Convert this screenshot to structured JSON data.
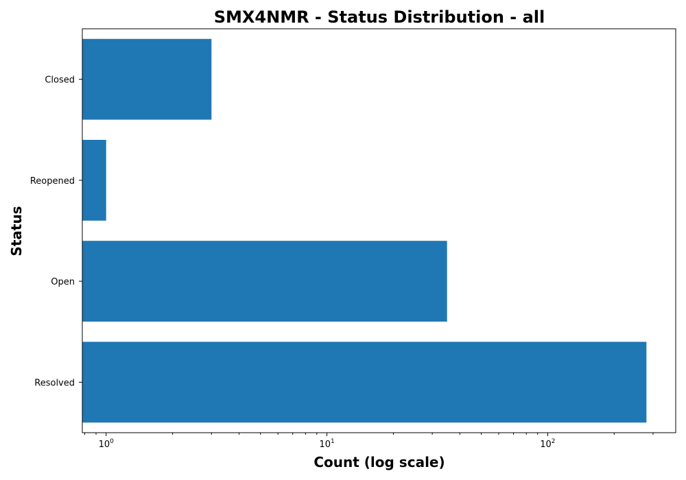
{
  "chart_data": {
    "type": "bar",
    "orientation": "horizontal",
    "title": "SMX4NMR - Status Distribution - all",
    "xlabel": "Count (log scale)",
    "ylabel": "Status",
    "x_scale": "log",
    "xlim": [
      0.78,
      380
    ],
    "x_ticks": [
      {
        "value": 1,
        "base": "10",
        "exp": "0"
      },
      {
        "value": 10,
        "base": "10",
        "exp": "1"
      },
      {
        "value": 100,
        "base": "10",
        "exp": "2"
      }
    ],
    "categories": [
      "Closed",
      "Reopened",
      "Open",
      "Resolved"
    ],
    "values": [
      3,
      1,
      35,
      280
    ],
    "bar_color": "#1f77b4",
    "grid": false,
    "legend": "none"
  }
}
